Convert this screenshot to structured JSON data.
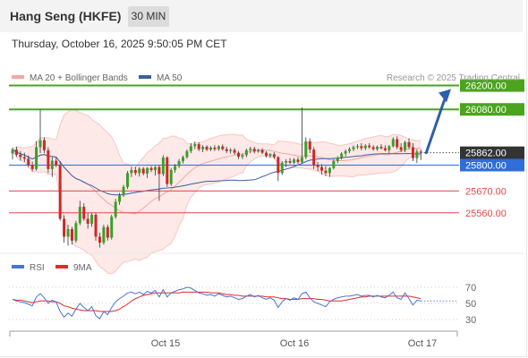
{
  "header": {
    "title": "Hang Seng (HKFE)",
    "timeframe": "30 MIN",
    "datetime": "Thursday, October 16, 2025 9:50:05 PM CET"
  },
  "chart_data": {
    "type": "candlestick",
    "title": "Hang Seng (HKFE)",
    "legend": [
      {
        "name": "MA 20 + Bollinger Bands",
        "color": "#f4a7a3"
      },
      {
        "name": "MA 50",
        "color": "#3a5fa0"
      }
    ],
    "credit": "Research © 2025 Trading Central",
    "levels": [
      {
        "value": 26200,
        "label": "26200.00",
        "kind": "resistance",
        "color": "#4ba41c"
      },
      {
        "value": 26080,
        "label": "26080.00",
        "kind": "resistance",
        "color": "#4ba41c"
      },
      {
        "value": 25862,
        "label": "25862.00",
        "kind": "last-price",
        "color": "#333333"
      },
      {
        "value": 25800,
        "label": "25800.00",
        "kind": "pivot",
        "color": "#2f6dd9"
      },
      {
        "value": 25670,
        "label": "25670.00",
        "kind": "support",
        "color": "#e6474a"
      },
      {
        "value": 25560,
        "label": "25560.00",
        "kind": "support",
        "color": "#e6474a"
      }
    ],
    "price_range": [
      25370,
      26270
    ],
    "x_labels": [
      "Oct 15",
      "Oct 16",
      "Oct 17"
    ],
    "bars": [
      {
        "o": 25858,
        "h": 25888,
        "l": 25828,
        "c": 25878
      },
      {
        "o": 25878,
        "h": 25892,
        "l": 25842,
        "c": 25852
      },
      {
        "o": 25852,
        "h": 25870,
        "l": 25822,
        "c": 25840
      },
      {
        "o": 25840,
        "h": 25862,
        "l": 25815,
        "c": 25832
      },
      {
        "o": 25832,
        "h": 25848,
        "l": 25790,
        "c": 25802
      },
      {
        "o": 25802,
        "h": 25818,
        "l": 25768,
        "c": 25780
      },
      {
        "o": 25780,
        "h": 25920,
        "l": 25772,
        "c": 25890
      },
      {
        "o": 25890,
        "h": 26080,
        "l": 25860,
        "c": 25925
      },
      {
        "o": 25925,
        "h": 25940,
        "l": 25860,
        "c": 25875
      },
      {
        "o": 25875,
        "h": 25890,
        "l": 25760,
        "c": 25780
      },
      {
        "o": 25780,
        "h": 25840,
        "l": 25740,
        "c": 25822
      },
      {
        "o": 25822,
        "h": 25840,
        "l": 25790,
        "c": 25800
      },
      {
        "o": 25800,
        "h": 25820,
        "l": 25520,
        "c": 25530
      },
      {
        "o": 25530,
        "h": 25548,
        "l": 25410,
        "c": 25440
      },
      {
        "o": 25440,
        "h": 25500,
        "l": 25395,
        "c": 25478
      },
      {
        "o": 25478,
        "h": 25490,
        "l": 25400,
        "c": 25420
      },
      {
        "o": 25420,
        "h": 25520,
        "l": 25410,
        "c": 25508
      },
      {
        "o": 25508,
        "h": 25620,
        "l": 25498,
        "c": 25590
      },
      {
        "o": 25590,
        "h": 25608,
        "l": 25520,
        "c": 25530
      },
      {
        "o": 25530,
        "h": 25560,
        "l": 25480,
        "c": 25505
      },
      {
        "o": 25505,
        "h": 25560,
        "l": 25490,
        "c": 25550
      },
      {
        "o": 25550,
        "h": 25560,
        "l": 25420,
        "c": 25440
      },
      {
        "o": 25440,
        "h": 25460,
        "l": 25385,
        "c": 25410
      },
      {
        "o": 25410,
        "h": 25500,
        "l": 25400,
        "c": 25488
      },
      {
        "o": 25488,
        "h": 25500,
        "l": 25420,
        "c": 25435
      },
      {
        "o": 25435,
        "h": 25550,
        "l": 25425,
        "c": 25540
      },
      {
        "o": 25540,
        "h": 25630,
        "l": 25530,
        "c": 25615
      },
      {
        "o": 25615,
        "h": 25660,
        "l": 25600,
        "c": 25648
      },
      {
        "o": 25648,
        "h": 25700,
        "l": 25640,
        "c": 25690
      },
      {
        "o": 25690,
        "h": 25770,
        "l": 25680,
        "c": 25760
      },
      {
        "o": 25760,
        "h": 25790,
        "l": 25740,
        "c": 25775
      },
      {
        "o": 25775,
        "h": 25792,
        "l": 25748,
        "c": 25760
      },
      {
        "o": 25760,
        "h": 25790,
        "l": 25742,
        "c": 25782
      },
      {
        "o": 25782,
        "h": 25790,
        "l": 25748,
        "c": 25758
      },
      {
        "o": 25758,
        "h": 25790,
        "l": 25735,
        "c": 25785
      },
      {
        "o": 25785,
        "h": 25795,
        "l": 25765,
        "c": 25775
      },
      {
        "o": 25775,
        "h": 25795,
        "l": 25748,
        "c": 25790
      },
      {
        "o": 25790,
        "h": 25800,
        "l": 25620,
        "c": 25755
      },
      {
        "o": 25755,
        "h": 25850,
        "l": 25745,
        "c": 25838
      },
      {
        "o": 25838,
        "h": 25845,
        "l": 25690,
        "c": 25705
      },
      {
        "o": 25705,
        "h": 25785,
        "l": 25695,
        "c": 25775
      },
      {
        "o": 25775,
        "h": 25805,
        "l": 25762,
        "c": 25795
      },
      {
        "o": 25795,
        "h": 25830,
        "l": 25785,
        "c": 25820
      },
      {
        "o": 25820,
        "h": 25848,
        "l": 25808,
        "c": 25840
      },
      {
        "o": 25840,
        "h": 25878,
        "l": 25832,
        "c": 25870
      },
      {
        "o": 25870,
        "h": 25910,
        "l": 25860,
        "c": 25895
      },
      {
        "o": 25895,
        "h": 25918,
        "l": 25880,
        "c": 25905
      },
      {
        "o": 25905,
        "h": 25915,
        "l": 25870,
        "c": 25880
      },
      {
        "o": 25880,
        "h": 25900,
        "l": 25865,
        "c": 25892
      },
      {
        "o": 25892,
        "h": 25900,
        "l": 25870,
        "c": 25878
      },
      {
        "o": 25878,
        "h": 25895,
        "l": 25870,
        "c": 25888
      },
      {
        "o": 25888,
        "h": 25900,
        "l": 25870,
        "c": 25880
      },
      {
        "o": 25880,
        "h": 25900,
        "l": 25872,
        "c": 25894
      },
      {
        "o": 25894,
        "h": 25904,
        "l": 25872,
        "c": 25880
      },
      {
        "o": 25880,
        "h": 25892,
        "l": 25860,
        "c": 25870
      },
      {
        "o": 25870,
        "h": 25885,
        "l": 25858,
        "c": 25876
      },
      {
        "o": 25876,
        "h": 25885,
        "l": 25852,
        "c": 25862
      },
      {
        "o": 25862,
        "h": 25870,
        "l": 25830,
        "c": 25842
      },
      {
        "o": 25842,
        "h": 25858,
        "l": 25830,
        "c": 25850
      },
      {
        "o": 25850,
        "h": 25882,
        "l": 25840,
        "c": 25875
      },
      {
        "o": 25875,
        "h": 25892,
        "l": 25860,
        "c": 25882
      },
      {
        "o": 25882,
        "h": 25892,
        "l": 25858,
        "c": 25868
      },
      {
        "o": 25868,
        "h": 25882,
        "l": 25862,
        "c": 25876
      },
      {
        "o": 25876,
        "h": 25885,
        "l": 25855,
        "c": 25862
      },
      {
        "o": 25862,
        "h": 25870,
        "l": 25838,
        "c": 25846
      },
      {
        "o": 25846,
        "h": 25860,
        "l": 25836,
        "c": 25855
      },
      {
        "o": 25855,
        "h": 25865,
        "l": 25830,
        "c": 25840
      },
      {
        "o": 25840,
        "h": 25845,
        "l": 25720,
        "c": 25760
      },
      {
        "o": 25760,
        "h": 25820,
        "l": 25750,
        "c": 25812
      },
      {
        "o": 25812,
        "h": 25830,
        "l": 25790,
        "c": 25820
      },
      {
        "o": 25820,
        "h": 25835,
        "l": 25805,
        "c": 25812
      },
      {
        "o": 25812,
        "h": 25835,
        "l": 25805,
        "c": 25828
      },
      {
        "o": 25828,
        "h": 25840,
        "l": 25805,
        "c": 25815
      },
      {
        "o": 25815,
        "h": 26090,
        "l": 25808,
        "c": 25840
      },
      {
        "o": 25840,
        "h": 25940,
        "l": 25830,
        "c": 25920
      },
      {
        "o": 25920,
        "h": 25935,
        "l": 25860,
        "c": 25878
      },
      {
        "o": 25878,
        "h": 25890,
        "l": 25780,
        "c": 25800
      },
      {
        "o": 25800,
        "h": 25815,
        "l": 25770,
        "c": 25790
      },
      {
        "o": 25790,
        "h": 25805,
        "l": 25752,
        "c": 25772
      },
      {
        "o": 25772,
        "h": 25795,
        "l": 25745,
        "c": 25760
      },
      {
        "o": 25760,
        "h": 25790,
        "l": 25740,
        "c": 25785
      },
      {
        "o": 25785,
        "h": 25830,
        "l": 25778,
        "c": 25820
      },
      {
        "o": 25820,
        "h": 25845,
        "l": 25810,
        "c": 25838
      },
      {
        "o": 25838,
        "h": 25865,
        "l": 25828,
        "c": 25858
      },
      {
        "o": 25858,
        "h": 25878,
        "l": 25845,
        "c": 25870
      },
      {
        "o": 25870,
        "h": 25890,
        "l": 25860,
        "c": 25880
      },
      {
        "o": 25880,
        "h": 25898,
        "l": 25870,
        "c": 25890
      },
      {
        "o": 25890,
        "h": 25905,
        "l": 25880,
        "c": 25895
      },
      {
        "o": 25895,
        "h": 25910,
        "l": 25875,
        "c": 25885
      },
      {
        "o": 25885,
        "h": 25905,
        "l": 25875,
        "c": 25898
      },
      {
        "o": 25898,
        "h": 25910,
        "l": 25882,
        "c": 25890
      },
      {
        "o": 25890,
        "h": 25900,
        "l": 25872,
        "c": 25880
      },
      {
        "o": 25880,
        "h": 25898,
        "l": 25872,
        "c": 25892
      },
      {
        "o": 25892,
        "h": 25905,
        "l": 25878,
        "c": 25885
      },
      {
        "o": 25885,
        "h": 25900,
        "l": 25868,
        "c": 25875
      },
      {
        "o": 25875,
        "h": 25900,
        "l": 25860,
        "c": 25895
      },
      {
        "o": 25895,
        "h": 25940,
        "l": 25888,
        "c": 25930
      },
      {
        "o": 25930,
        "h": 25945,
        "l": 25880,
        "c": 25890
      },
      {
        "o": 25890,
        "h": 25910,
        "l": 25865,
        "c": 25875
      },
      {
        "o": 25875,
        "h": 25922,
        "l": 25865,
        "c": 25915
      },
      {
        "o": 25915,
        "h": 25935,
        "l": 25880,
        "c": 25890
      },
      {
        "o": 25890,
        "h": 25910,
        "l": 25820,
        "c": 25835
      },
      {
        "o": 25835,
        "h": 25880,
        "l": 25810,
        "c": 25868
      },
      {
        "o": 25868,
        "h": 25878,
        "l": 25825,
        "c": 25862
      }
    ],
    "rsi_panel": {
      "legend": [
        {
          "name": "RSI",
          "color": "#4a74d6"
        },
        {
          "name": "9MA",
          "color": "#e22a2a"
        }
      ],
      "range": [
        20,
        80
      ],
      "ticks": [
        {
          "value": 70,
          "label": "70"
        },
        {
          "value": 50,
          "label": "50"
        },
        {
          "value": 30,
          "label": "30"
        }
      ],
      "rsi": [
        55,
        53,
        52,
        51,
        49,
        47,
        58,
        62,
        57,
        50,
        54,
        52,
        40,
        33,
        38,
        34,
        43,
        50,
        45,
        41,
        46,
        35,
        31,
        40,
        36,
        45,
        52,
        56,
        59,
        63,
        64,
        62,
        64,
        61,
        65,
        63,
        66,
        58,
        67,
        58,
        63,
        65,
        67,
        68,
        70,
        69,
        66,
        63,
        62,
        60,
        61,
        59,
        62,
        60,
        58,
        59,
        57,
        55,
        56,
        59,
        61,
        58,
        60,
        57,
        55,
        57,
        54,
        45,
        52,
        56,
        54,
        57,
        55,
        62,
        64,
        57,
        52,
        50,
        48,
        46,
        52,
        55,
        57,
        58,
        59,
        59,
        60,
        61,
        59,
        60,
        60,
        58,
        60,
        58,
        57,
        60,
        64,
        57,
        55,
        63,
        56,
        48,
        54,
        53
      ],
      "ma9": [
        55,
        54,
        54,
        53,
        52,
        51,
        52,
        53,
        53,
        53,
        52,
        52,
        50,
        47,
        46,
        44,
        43,
        42,
        41,
        41,
        41,
        41,
        40,
        40,
        40,
        40,
        41,
        43,
        46,
        49,
        53,
        56,
        58,
        60,
        61,
        62,
        63,
        63,
        63,
        63,
        63,
        63,
        63,
        64,
        64,
        64,
        64,
        64,
        64,
        64,
        63,
        63,
        63,
        62,
        61,
        61,
        60,
        60,
        59,
        59,
        59,
        59,
        59,
        59,
        58,
        58,
        58,
        57,
        56,
        56,
        55,
        55,
        55,
        56,
        56,
        56,
        56,
        55,
        55,
        54,
        53,
        53,
        53,
        53,
        54,
        55,
        56,
        57,
        58,
        58,
        59,
        59,
        59,
        59,
        59,
        59,
        59,
        59,
        59,
        59,
        59,
        58,
        57,
        56
      ]
    }
  }
}
